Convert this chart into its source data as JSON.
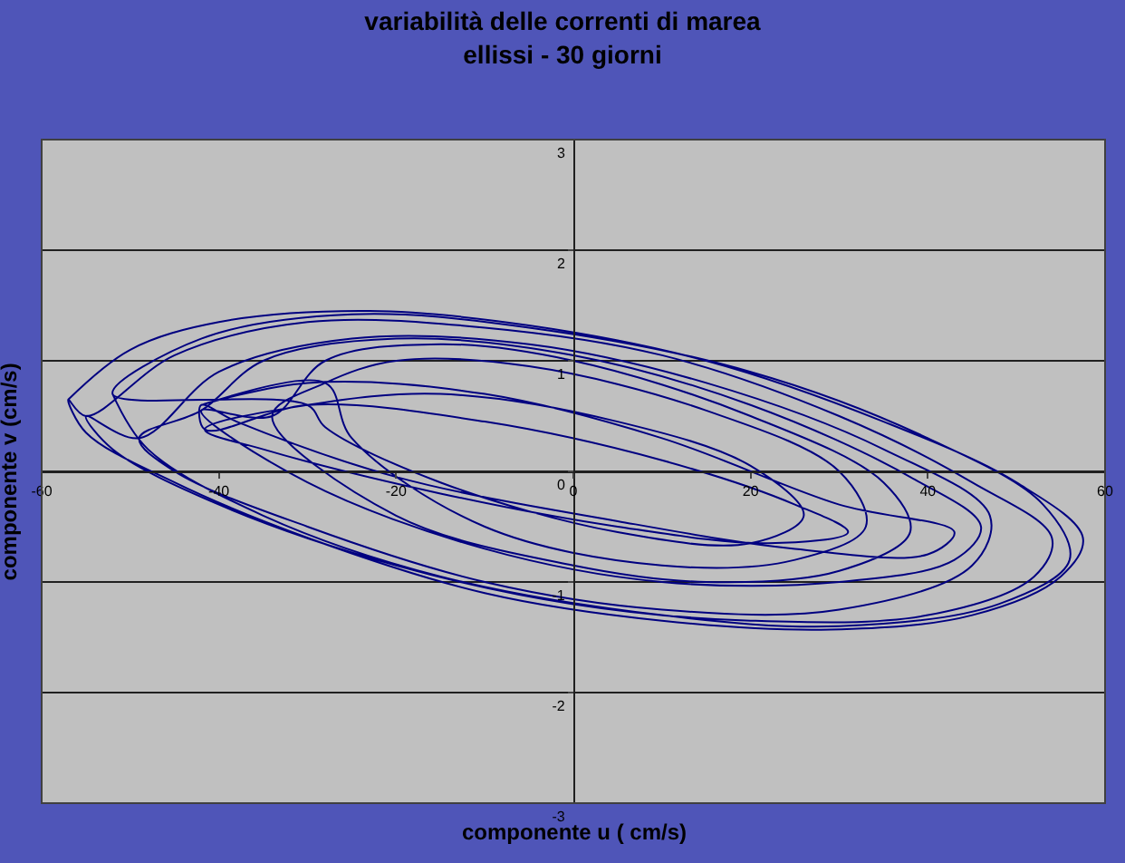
{
  "chart_data": {
    "type": "line",
    "title": "variabilità delle correnti di marea",
    "subtitle": "ellissi - 30 giorni",
    "xlabel": "componente u ( cm/s)",
    "ylabel": "componente v (cm/s)",
    "x": [
      -57,
      -50,
      -40,
      -23,
      -5,
      15,
      35,
      50,
      57.5,
      55,
      45,
      29,
      10,
      -10,
      -30,
      -45,
      -55,
      -57,
      -55,
      -45,
      -30,
      -10,
      10,
      30,
      45,
      54,
      52,
      40,
      20,
      0,
      -20,
      -40,
      -52,
      -55,
      -49,
      -40,
      -25,
      -5,
      15,
      35,
      47,
      45,
      30,
      10,
      -10,
      -30,
      -45,
      -49,
      -42,
      -35,
      -20,
      0,
      20,
      38,
      46,
      43,
      30,
      10,
      -10,
      -30,
      -42,
      -34,
      -28,
      -15,
      0,
      20,
      35,
      38,
      30,
      15,
      0,
      -20,
      -34,
      -28,
      -20,
      -5,
      15,
      30,
      33,
      25,
      10,
      -10,
      -25,
      -28,
      -42,
      -30,
      -10,
      10,
      30,
      43,
      40,
      25,
      5,
      -20,
      -38,
      -42,
      -41.6,
      -30,
      -10,
      10,
      25,
      31,
      22,
      5,
      -15,
      -35,
      -41.6,
      -30,
      -15,
      5,
      20,
      26,
      20,
      5,
      -15,
      -28,
      -30,
      -52,
      -42,
      -25,
      -5,
      20,
      40,
      53,
      56,
      48,
      30,
      10,
      -15,
      -35,
      -48,
      -52
    ],
    "values": [
      0.65,
      1.1,
      1.35,
      1.45,
      1.32,
      1.0,
      0.45,
      -0.1,
      -0.6,
      -0.95,
      -1.3,
      -1.43,
      -1.35,
      -1.1,
      -0.6,
      -0.1,
      0.35,
      0.65,
      0.5,
      1.05,
      1.35,
      1.3,
      1.05,
      0.5,
      -0.1,
      -0.6,
      -0.95,
      -1.3,
      -1.35,
      -1.2,
      -0.85,
      -0.3,
      0.2,
      0.5,
      0.3,
      0.9,
      1.2,
      1.15,
      0.8,
      0.2,
      -0.4,
      -0.85,
      -1.25,
      -1.25,
      -1.0,
      -0.5,
      0.0,
      0.3,
      0.55,
      1.0,
      1.2,
      1.05,
      0.6,
      -0.05,
      -0.5,
      -0.8,
      -1.0,
      -1.0,
      -0.7,
      -0.1,
      0.55,
      0.5,
      1.0,
      1.15,
      1.0,
      0.5,
      -0.1,
      -0.55,
      -0.9,
      -1.0,
      -0.85,
      -0.4,
      0.5,
      0.8,
      1.0,
      0.95,
      0.55,
      0.0,
      -0.5,
      -0.8,
      -0.85,
      -0.5,
      0.3,
      0.8,
      0.6,
      0.8,
      0.7,
      0.3,
      -0.3,
      -0.55,
      -0.75,
      -0.7,
      -0.45,
      -0.05,
      0.45,
      0.6,
      0.38,
      0.6,
      0.45,
      0.1,
      -0.3,
      -0.55,
      -0.65,
      -0.5,
      -0.2,
      0.2,
      0.38,
      0.6,
      0.7,
      0.45,
      0.05,
      -0.4,
      -0.65,
      -0.55,
      -0.1,
      0.4,
      0.6,
      0.7,
      1.2,
      1.42,
      1.3,
      0.9,
      0.3,
      -0.3,
      -0.8,
      -1.2,
      -1.4,
      -1.3,
      -0.95,
      -0.4,
      0.2,
      0.7
    ],
    "color": "#000080",
    "xlim": [
      -60,
      60
    ],
    "xticks": [
      -60,
      -40,
      -20,
      0,
      20,
      40,
      60
    ],
    "ylim": [
      -3,
      3
    ],
    "yticks": [
      -3,
      -2,
      -1,
      0,
      1,
      2,
      3
    ],
    "grid": "y",
    "marker": "none",
    "line_style": "solid",
    "legend": false
  }
}
